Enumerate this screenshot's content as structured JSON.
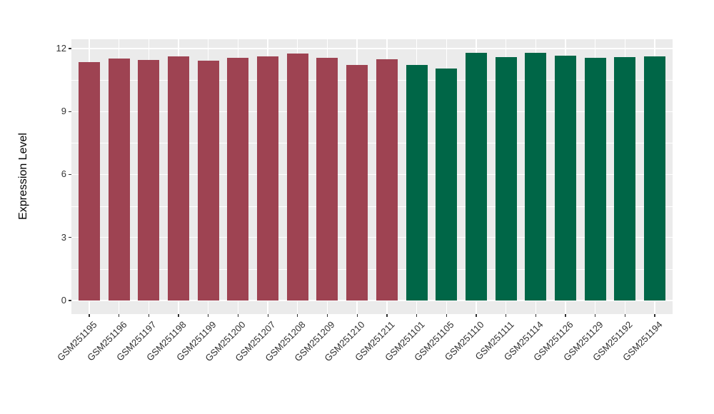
{
  "chart_data": {
    "type": "bar",
    "title": "",
    "xlabel": "",
    "ylabel": "Expression Level",
    "ylim": [
      0,
      12.45
    ],
    "yticks": [
      0,
      3,
      6,
      9,
      12
    ],
    "minor_yticks": [
      1.5,
      4.5,
      7.5,
      10.5
    ],
    "grid": "on",
    "legend_position": "none",
    "panel_background": "#EBEBEB",
    "gridline_color": "#FFFFFF",
    "tick_color": "#333333",
    "group_colors": {
      "group1": "#9E4352",
      "group2": "#006647"
    },
    "categories": [
      "GSM251195",
      "GSM251196",
      "GSM251197",
      "GSM251198",
      "GSM251199",
      "GSM251200",
      "GSM251207",
      "GSM251208",
      "GSM251209",
      "GSM251210",
      "GSM251211",
      "GSM251101",
      "GSM251105",
      "GSM251110",
      "GSM251111",
      "GSM251114",
      "GSM251126",
      "GSM251129",
      "GSM251192",
      "GSM251194"
    ],
    "values": [
      11.36,
      11.52,
      11.46,
      11.63,
      11.43,
      11.56,
      11.63,
      11.75,
      11.55,
      11.23,
      11.48,
      11.22,
      11.06,
      11.8,
      11.59,
      11.78,
      11.65,
      11.57,
      11.59,
      11.64
    ],
    "groups": [
      "group1",
      "group1",
      "group1",
      "group1",
      "group1",
      "group1",
      "group1",
      "group1",
      "group1",
      "group1",
      "group1",
      "group2",
      "group2",
      "group2",
      "group2",
      "group2",
      "group2",
      "group2",
      "group2",
      "group2"
    ]
  }
}
